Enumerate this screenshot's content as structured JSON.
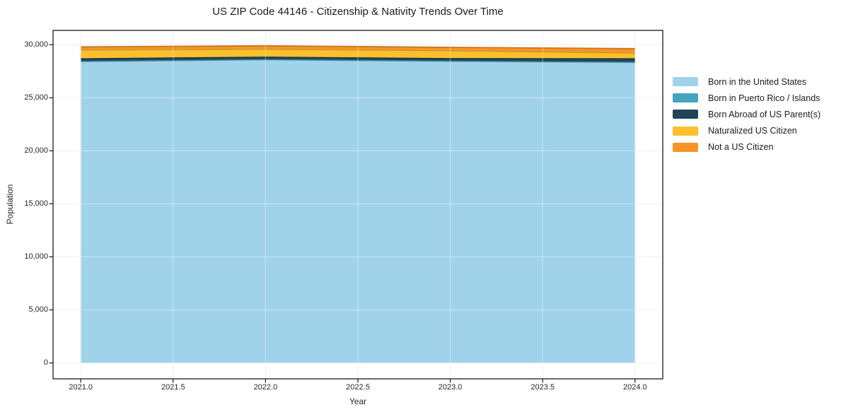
{
  "chart": {
    "title": "US ZIP Code 44146 - Citizenship & Nativity Trends Over Time",
    "xlabel": "Year",
    "ylabel": "Population"
  },
  "chart_data": {
    "type": "area",
    "stacked": true,
    "title": "US ZIP Code 44146 - Citizenship & Nativity Trends Over Time",
    "xlabel": "Year",
    "ylabel": "Population",
    "x": [
      2021,
      2022,
      2023,
      2024
    ],
    "series": [
      {
        "name": "Born in the United States",
        "color": "#A0D2EA",
        "values": [
          28400,
          28570,
          28430,
          28320
        ]
      },
      {
        "name": "Born in Puerto Rico / Islands",
        "color": "#45A5C0",
        "values": [
          30,
          30,
          30,
          30
        ]
      },
      {
        "name": "Born Abroad of US Parent(s)",
        "color": "#1E4657",
        "values": [
          250,
          230,
          240,
          330
        ]
      },
      {
        "name": "Naturalized US Citizen",
        "color": "#FCBF2D",
        "values": [
          820,
          740,
          730,
          530
        ]
      },
      {
        "name": "Not a US Citizen",
        "color": "#F79428",
        "values": [
          300,
          330,
          320,
          420
        ]
      }
    ],
    "xlim": [
      2020.85,
      2024.15
    ],
    "ylim": [
      -1500,
      31350
    ],
    "xticks": {
      "values": [
        2021.0,
        2021.5,
        2022.0,
        2022.5,
        2023.0,
        2023.5,
        2024.0
      ],
      "labels": [
        "2021.0",
        "2021.5",
        "2022.0",
        "2022.5",
        "2023.0",
        "2023.5",
        "2024.0"
      ]
    },
    "yticks": {
      "values": [
        0,
        5000,
        10000,
        15000,
        20000,
        25000,
        30000
      ],
      "labels": [
        "0",
        "5,000",
        "10,000",
        "15,000",
        "20,000",
        "25,000",
        "30,000"
      ]
    },
    "grid": true,
    "legend_position": "right"
  },
  "colors": {
    "frame": "#1a1a1a",
    "grid_under": "#e9e9e9",
    "grid_over": "rgba(255,255,255,0.42)",
    "tick": "#1a1a1a",
    "text": "#262626"
  }
}
